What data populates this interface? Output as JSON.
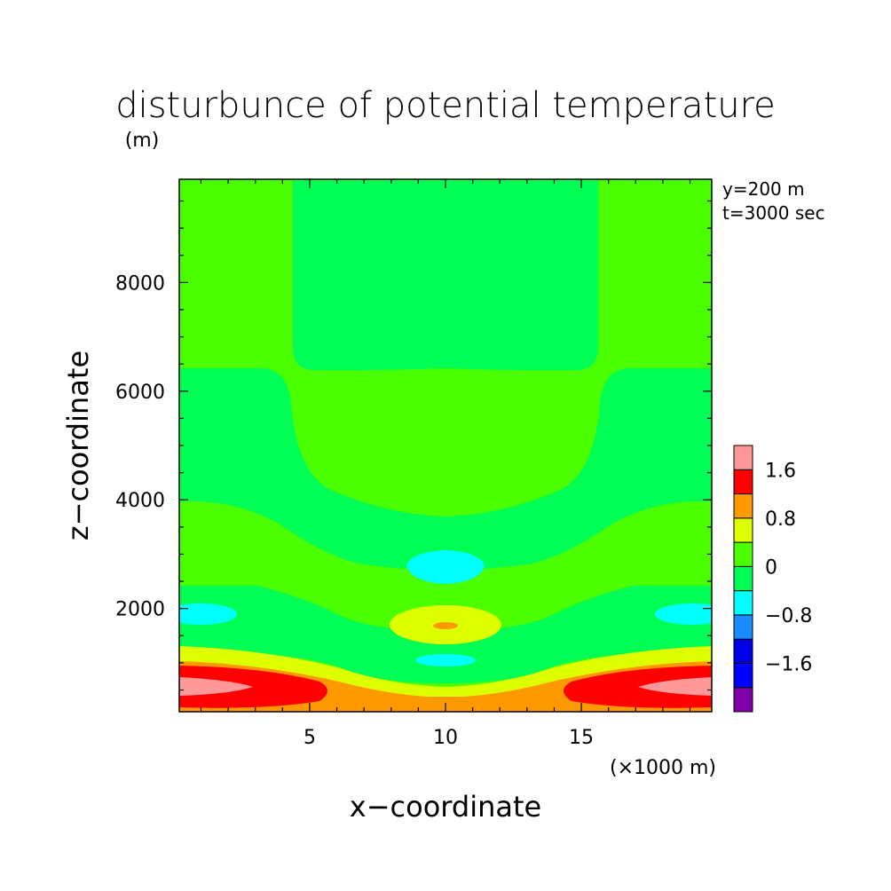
{
  "chart_data": {
    "type": "contour",
    "title": "disturbunce of potential temperature",
    "ylabel": "z−coordinate",
    "yunit": "(m)",
    "xlabel": "x−coordinate",
    "xunit": "(×1000 m)",
    "annotations": [
      "y=200 m",
      "t=3000 sec"
    ],
    "xlim": [
      0.2,
      19.8
    ],
    "ylim": [
      100,
      9900
    ],
    "xticks": [
      {
        "value": 5,
        "label": "5"
      },
      {
        "value": 10,
        "label": "10"
      },
      {
        "value": 15,
        "label": "15"
      }
    ],
    "yticks": [
      {
        "value": 2000,
        "label": "2000"
      },
      {
        "value": 4000,
        "label": "4000"
      },
      {
        "value": 6000,
        "label": "6000"
      },
      {
        "value": 8000,
        "label": "8000"
      }
    ],
    "colorbar": {
      "levels": [
        {
          "lo": null,
          "hi": -2.0,
          "color": "#7f00a8"
        },
        {
          "lo": -2.0,
          "hi": -1.6,
          "color": "#0000ff"
        },
        {
          "lo": -1.6,
          "hi": -1.2,
          "color": "#0000e6"
        },
        {
          "lo": -1.2,
          "hi": -0.8,
          "color": "#1a8cff"
        },
        {
          "lo": -0.8,
          "hi": -0.4,
          "color": "#00ffff"
        },
        {
          "lo": -0.4,
          "hi": 0.0,
          "color": "#00ff55"
        },
        {
          "lo": 0.0,
          "hi": 0.4,
          "color": "#4cff00"
        },
        {
          "lo": 0.4,
          "hi": 0.8,
          "color": "#ddff00"
        },
        {
          "lo": 0.8,
          "hi": 1.2,
          "color": "#ff9900"
        },
        {
          "lo": 1.2,
          "hi": 1.6,
          "color": "#ff0000"
        },
        {
          "lo": 1.6,
          "hi": null,
          "color": "#ff9999"
        }
      ],
      "tick_labels": [
        {
          "value": -1.6,
          "label": "−1.6"
        },
        {
          "value": -0.8,
          "label": "−0.8"
        },
        {
          "value": 0,
          "label": "0"
        },
        {
          "value": 0.8,
          "label": "0.8"
        },
        {
          "value": 1.6,
          "label": "1.6"
        }
      ]
    },
    "regions": [
      {
        "name": "background",
        "value": 0.2
      },
      {
        "name": "central-column",
        "value": -0.2,
        "x": [
          4.3,
          15.7
        ],
        "z": [
          6300,
          9900
        ]
      },
      {
        "name": "upper-trough",
        "value": -0.2,
        "x_range": [
          0.2,
          19.8
        ],
        "z_edge": 6400,
        "z_center": 3700
      },
      {
        "name": "mid-layer",
        "value": -0.2,
        "z": [
          1400,
          3900
        ]
      },
      {
        "name": "upper-cyan-cell",
        "center": [
          10,
          2850
        ],
        "value": -0.6
      },
      {
        "name": "side-cyan-cells",
        "center": [
          [
            1.5,
            1800
          ],
          [
            18.5,
            1800
          ]
        ],
        "value": -0.6
      },
      {
        "name": "central-warm-ring",
        "center": [
          10,
          1650
        ],
        "value": 0.6
      },
      {
        "name": "central-warm-core",
        "center": [
          10,
          1650
        ],
        "value": 1.0
      },
      {
        "name": "lower-cyan-cell",
        "center": [
          10,
          1000
        ],
        "value": -0.6
      },
      {
        "name": "surface-warm-layer",
        "z": [
          100,
          1300
        ],
        "value": 1.0
      },
      {
        "name": "surface-red-lobes",
        "center": [
          [
            2.5,
            550
          ],
          [
            17.5,
            550
          ]
        ],
        "value": 1.4
      },
      {
        "name": "surface-pink-cores",
        "center": [
          [
            1.5,
            550
          ],
          [
            18.5,
            550
          ]
        ],
        "value": 1.8
      }
    ]
  }
}
